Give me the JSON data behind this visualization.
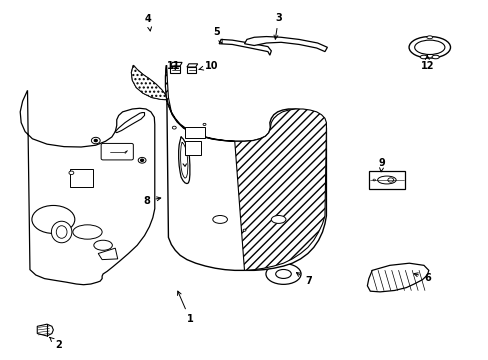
{
  "bg": "#ffffff",
  "lc": "#1a1a1a",
  "parts_labels": {
    "1": [
      0.39,
      0.12,
      0.385,
      0.195
    ],
    "2": [
      0.118,
      0.045,
      0.1,
      0.065
    ],
    "3": [
      0.57,
      0.955,
      0.555,
      0.875
    ],
    "4": [
      0.305,
      0.94,
      0.325,
      0.9
    ],
    "5": [
      0.445,
      0.905,
      0.44,
      0.875
    ],
    "6": [
      0.87,
      0.235,
      0.84,
      0.25
    ],
    "7": [
      0.63,
      0.22,
      0.6,
      0.255
    ],
    "8": [
      0.305,
      0.44,
      0.33,
      0.445
    ],
    "9": [
      0.78,
      0.54,
      0.775,
      0.51
    ],
    "10": [
      0.43,
      0.81,
      0.415,
      0.785
    ],
    "11": [
      0.355,
      0.81,
      0.36,
      0.785
    ],
    "12": [
      0.87,
      0.82,
      0.87,
      0.855
    ]
  }
}
